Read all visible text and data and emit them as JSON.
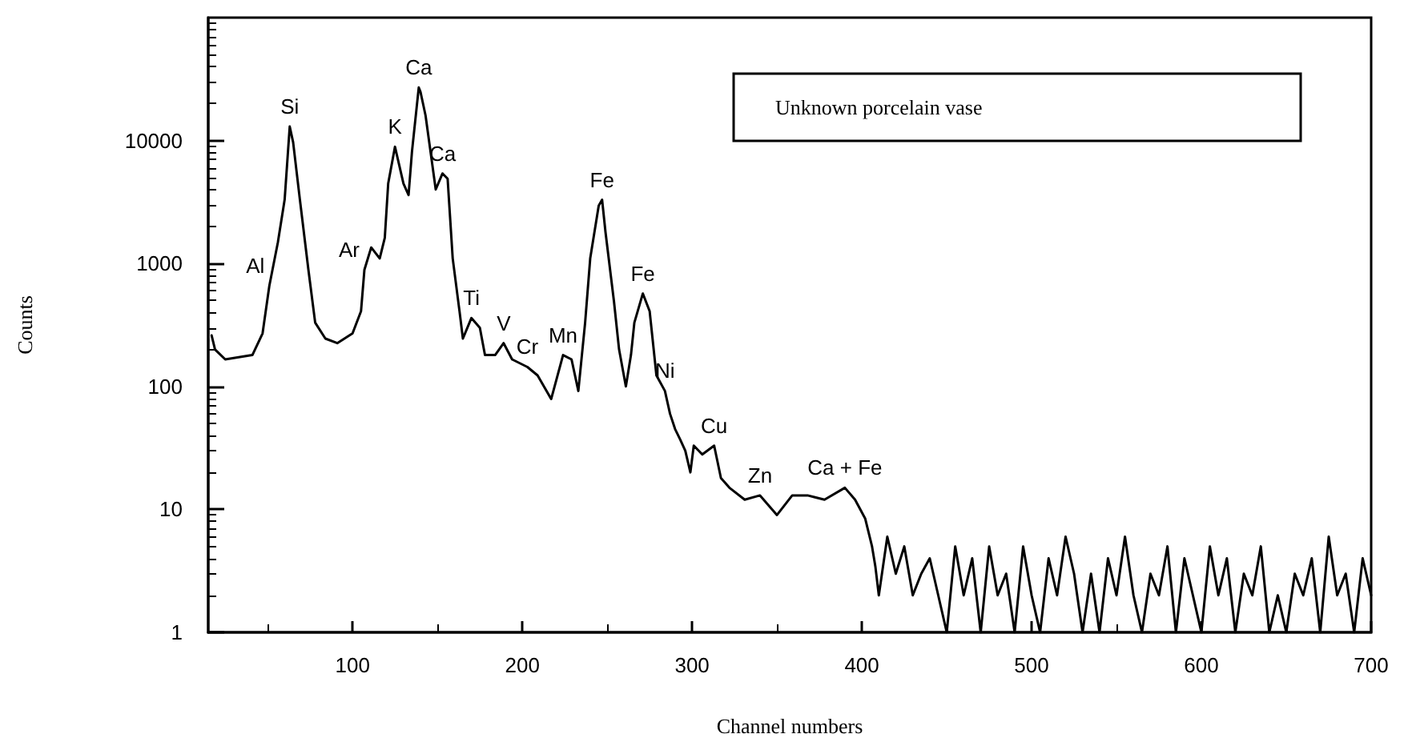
{
  "chart_data": {
    "type": "line",
    "xlabel": "Channel numbers",
    "ylabel": "Counts",
    "log": "y",
    "grid": false,
    "marker": "none",
    "line_style": "solid",
    "xlim": [
      15,
      700
    ],
    "xticks": [
      100,
      200,
      300,
      400,
      500,
      600,
      700
    ],
    "ylim": [
      1,
      100000
    ],
    "yticks": [
      1,
      10,
      100,
      1000,
      10000
    ],
    "series": [
      {
        "color": "#000000",
        "x": [
          17,
          19,
          25,
          41,
          47,
          51,
          56,
          60,
          63,
          65,
          69,
          74,
          78,
          84,
          91,
          100,
          105,
          107,
          111,
          116,
          119,
          121,
          125,
          130,
          133,
          135,
          139,
          140,
          143,
          149,
          153,
          156,
          159,
          163,
          165,
          170,
          175,
          178,
          184,
          189,
          194,
          203,
          209,
          217,
          224,
          229,
          233,
          237,
          240,
          245,
          247,
          249,
          254,
          257,
          261,
          264,
          266,
          271,
          275,
          279,
          284,
          287,
          290,
          293,
          296,
          299,
          301,
          306,
          313,
          317,
          322,
          331,
          340,
          350,
          359,
          368,
          378,
          390,
          396,
          402,
          406,
          408,
          410,
          415,
          420,
          425,
          430,
          435,
          440,
          445,
          450,
          455,
          460,
          465,
          470,
          475,
          480,
          485,
          490,
          495,
          500,
          505,
          510,
          515,
          520,
          525,
          530,
          535,
          540,
          545,
          550,
          555,
          560,
          565,
          570,
          575,
          580,
          585,
          590,
          595,
          600,
          605,
          610,
          615,
          620,
          625,
          630,
          635,
          640,
          645,
          650,
          655,
          660,
          665,
          670,
          675,
          680,
          685,
          690,
          695,
          700
        ],
        "values": [
          260,
          200,
          166,
          180,
          270,
          660,
          1480,
          3300,
          13000,
          9700,
          3300,
          890,
          330,
          245,
          225,
          270,
          410,
          890,
          1350,
          1100,
          1620,
          4470,
          8900,
          4470,
          3600,
          8100,
          27000,
          25000,
          16000,
          4000,
          5400,
          4900,
          1100,
          410,
          245,
          360,
          300,
          180,
          180,
          225,
          166,
          144,
          123,
          79,
          180,
          166,
          92,
          330,
          1100,
          2950,
          3300,
          1800,
          490,
          200,
          100,
          180,
          330,
          570,
          410,
          123,
          92,
          60,
          45,
          37,
          30,
          20,
          33,
          28,
          33,
          18,
          15,
          12,
          13,
          9,
          13,
          13,
          12,
          15,
          12,
          8.4,
          5,
          3.4,
          2,
          6,
          3,
          5,
          2,
          3,
          4,
          2,
          1,
          5,
          2,
          4,
          1,
          5,
          2,
          3,
          1,
          5,
          2,
          1,
          4,
          2,
          6,
          3,
          1,
          3,
          1,
          4,
          2,
          6,
          2,
          1,
          3,
          2,
          5,
          1,
          4,
          2,
          1,
          5,
          2,
          4,
          1,
          3,
          2,
          5,
          1,
          2,
          1,
          3,
          2,
          4,
          1,
          6,
          2,
          3,
          1,
          4,
          2
        ]
      }
    ],
    "annotations": [
      {
        "text": "Al",
        "x": 51,
        "y": 660
      },
      {
        "text": "Si",
        "x": 63,
        "y": 13000
      },
      {
        "text": "Ar",
        "x": 107,
        "y": 890
      },
      {
        "text": "K",
        "x": 125,
        "y": 8900
      },
      {
        "text": "Ca",
        "x": 139,
        "y": 27000
      },
      {
        "text": "Ca",
        "x": 153,
        "y": 5400
      },
      {
        "text": "Ti",
        "x": 170,
        "y": 360
      },
      {
        "text": "V",
        "x": 189,
        "y": 225
      },
      {
        "text": "Cr",
        "x": 203,
        "y": 144
      },
      {
        "text": "Mn",
        "x": 224,
        "y": 180
      },
      {
        "text": "Fe",
        "x": 247,
        "y": 3300
      },
      {
        "text": "Fe",
        "x": 271,
        "y": 570
      },
      {
        "text": "Ni",
        "x": 284,
        "y": 92
      },
      {
        "text": "Cu",
        "x": 313,
        "y": 33
      },
      {
        "text": "Zn",
        "x": 340,
        "y": 13
      },
      {
        "text": "Ca + Fe",
        "x": 390,
        "y": 15
      },
      "Unknown porcelain vase"
    ]
  }
}
